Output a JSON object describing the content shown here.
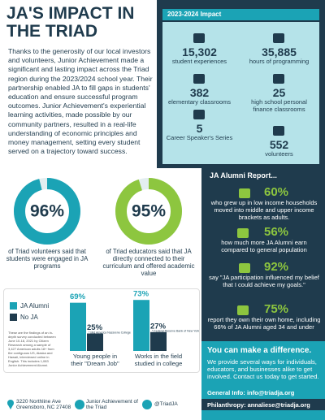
{
  "header": {
    "title": "JA'S IMPACT IN THE TRIAD"
  },
  "intro": "Thanks to the generosity of our local investors and volunteers, Junior Achievement made a significant and lasting impact across the Triad region during the 2023/2024 school year. Their partnership enabled JA to fill gaps in students' education and ensure successful program outcomes. Junior Achievement's experiential learning activities, made possible by our community partners, resulted in a real-life understanding of economic principles and money management, setting every student served on a trajectory toward success.",
  "impact": {
    "title": "2023-2024 Impact",
    "stats": [
      {
        "value": "15,302",
        "label": "student experiences"
      },
      {
        "value": "35,885",
        "label": "hours of programming"
      },
      {
        "value": "382",
        "label": "elementary classrooms"
      },
      {
        "value": "25",
        "label": "high school personal finance classrooms"
      },
      {
        "value": "5",
        "label": "Career Speaker's Series"
      },
      {
        "value": "552",
        "label": "volunteers"
      }
    ]
  },
  "donuts": [
    {
      "value": 96,
      "label": "96%",
      "color": "#1ba3b5",
      "caption": "of Triad volunteers said that students were engaged in JA programs"
    },
    {
      "value": 95,
      "label": "95%",
      "color": "#8dc63f",
      "caption": "of Triad educators said that JA directly connected to their curriculum and offered academic value"
    }
  ],
  "alumni": {
    "title": "JA Alumni Report...",
    "items": [
      {
        "value": "60%",
        "text": "who grew up in low income households moved into middle and upper income brackets as adults."
      },
      {
        "value": "56%",
        "text": "how much more JA Alumni earn compared to general population"
      },
      {
        "value": "92%",
        "text": "say \"JA participation influenced my belief that I could achieve my goals.\""
      },
      {
        "value": "75%",
        "text": "report they own their own home, including 66% of JA Alumni aged 34 and under"
      }
    ]
  },
  "bars": {
    "legend": [
      {
        "name": "JA Alumni",
        "color": "#1ba3b5"
      },
      {
        "name": "No JA",
        "color": "#1f3b4d"
      }
    ],
    "note": "These are the findings of an in-depth survey conducted between June 10-18, 2021 by Citizen Research among a sample of 3,427 American adults 18+ from the contiguous US, Alaska and Hawaii, interviewed online in English. This includes 1,083 Junior Achievement Alumni.",
    "groups": [
      {
        "caption": "Young people in their \"Dream Job\"",
        "values": [
          69,
          25
        ],
        "value_labels": [
          "69%",
          "25%"
        ],
        "source": "* Mid America Nazarene College"
      },
      {
        "caption": "Works in the field studied in college",
        "values": [
          73,
          27
        ],
        "value_labels": [
          "73%",
          "27%"
        ],
        "source": "* Federal Reserve Bank of New York"
      }
    ]
  },
  "cta": {
    "title": "You can make a difference.",
    "text": "We provide several ways for individuals, educators, and businesses alike to get involved. Contact us today to get started.",
    "general": "General Info: info@triadja.org",
    "philanthropy": "Philanthropy: annaliese@triadja.org"
  },
  "footer": {
    "address": "3220 Northline Ave Greensboro, NC 27408",
    "org": "Junior Achievement of the Triad",
    "social": "@TriadJA"
  }
}
